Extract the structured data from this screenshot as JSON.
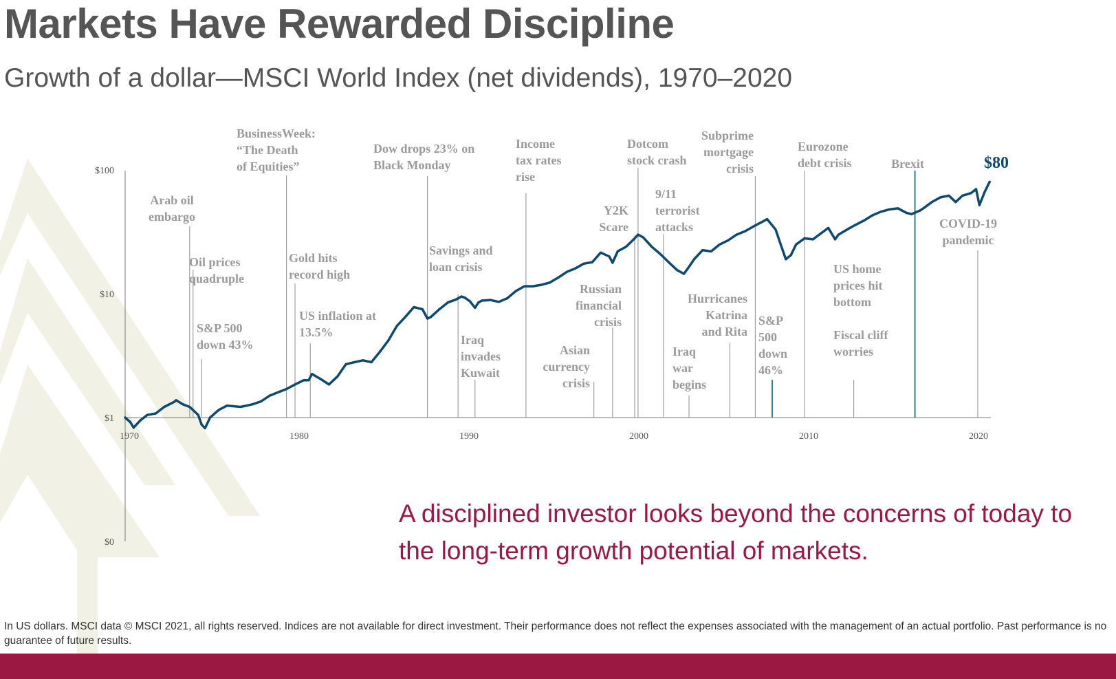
{
  "title": "Markets Have Rewarded Discipline",
  "subtitle": "Growth of a dollar—MSCI World Index (net dividends), 1970–2020",
  "tagline": "A disciplined investor looks beyond the concerns of today to the long-term growth potential of markets.",
  "footnote": "In US dollars. MSCI data © MSCI 2021, all rights reserved. Indices are not available for direct investment. Their performance does not reflect the expenses associated with the management of an actual portfolio. Past performance is no guarantee of future results.",
  "colors": {
    "line": "#0d4a6e",
    "accent": "#9b1842",
    "event_text": "#9a9a9a",
    "highlight_line": "#2a8293",
    "watermark": "#f2f1e6"
  },
  "chart_data": {
    "type": "line",
    "scale": "log",
    "y_ticks": [
      {
        "value": 100,
        "label": "$100"
      },
      {
        "value": 10,
        "label": "$10"
      },
      {
        "value": 1,
        "label": "$1"
      },
      {
        "value": 0,
        "label": "$0"
      }
    ],
    "x_ticks": [
      {
        "value": 1970,
        "label": "1970"
      },
      {
        "value": 1980,
        "label": "1980"
      },
      {
        "value": 1990,
        "label": "1990"
      },
      {
        "value": 2000,
        "label": "2000"
      },
      {
        "value": 2010,
        "label": "2010"
      },
      {
        "value": 2020,
        "label": "2020"
      }
    ],
    "end_value_label": "$80",
    "series": [
      {
        "x": [
          1970.0,
          1970.3,
          1970.5,
          1970.9,
          1971.3,
          1971.8,
          1972.3,
          1972.9,
          1973.0,
          1973.4,
          1973.8,
          1974.3,
          1974.5,
          1974.7,
          1975.0,
          1975.5,
          1976.0,
          1976.8,
          1977.5,
          1978.0,
          1978.5,
          1979.0,
          1979.5,
          1980.0,
          1980.5,
          1980.8,
          1981.0,
          1981.5,
          1982.0,
          1982.5,
          1983.0,
          1983.5,
          1984.0,
          1984.5,
          1985.0,
          1985.5,
          1986.0,
          1986.5,
          1987.0,
          1987.5,
          1987.8,
          1988.0,
          1988.5,
          1989.0,
          1989.5,
          1989.8,
          1990.0,
          1990.3,
          1990.6,
          1990.8,
          1991.0,
          1991.5,
          1992.0,
          1992.5,
          1993.0,
          1993.5,
          1994.0,
          1994.5,
          1995.0,
          1995.5,
          1996.0,
          1996.5,
          1997.0,
          1997.5,
          1998.0,
          1998.5,
          1998.7,
          1999.0,
          1999.5,
          2000.0,
          2000.2,
          2000.5,
          2001.0,
          2001.5,
          2002.0,
          2002.5,
          2002.9,
          2003.2,
          2003.5,
          2004.0,
          2004.5,
          2005.0,
          2005.5,
          2006.0,
          2006.5,
          2007.0,
          2007.5,
          2007.8,
          2008.3,
          2008.6,
          2008.9,
          2009.2,
          2009.5,
          2010.0,
          2010.5,
          2011.0,
          2011.4,
          2011.8,
          2012.0,
          2012.5,
          2013.0,
          2013.5,
          2014.0,
          2014.5,
          2015.0,
          2015.5,
          2016.0,
          2016.3,
          2016.8,
          2017.0,
          2017.5,
          2018.0,
          2018.5,
          2018.9,
          2019.3,
          2019.8,
          2020.1,
          2020.3,
          2020.6,
          2020.9
        ],
        "values": [
          1.0,
          0.92,
          0.83,
          0.95,
          1.05,
          1.08,
          1.22,
          1.34,
          1.38,
          1.28,
          1.22,
          1.05,
          0.88,
          0.82,
          1.0,
          1.15,
          1.25,
          1.22,
          1.28,
          1.35,
          1.5,
          1.6,
          1.7,
          1.85,
          2.0,
          2.0,
          2.25,
          2.05,
          1.85,
          2.15,
          2.7,
          2.8,
          2.9,
          2.8,
          3.4,
          4.2,
          5.5,
          6.5,
          7.8,
          7.5,
          6.3,
          6.5,
          7.5,
          8.5,
          9.0,
          9.5,
          9.3,
          8.7,
          7.7,
          8.5,
          8.8,
          8.9,
          8.6,
          9.2,
          10.5,
          11.5,
          11.5,
          11.8,
          12.3,
          13.5,
          15.0,
          16.0,
          17.5,
          18.0,
          21.5,
          20.0,
          17.8,
          22.0,
          24.0,
          28.0,
          30.0,
          28.5,
          24.0,
          21.0,
          18.0,
          15.5,
          14.5,
          16.5,
          19.0,
          22.5,
          22.0,
          25.0,
          27.0,
          30.0,
          32.0,
          35.0,
          38.0,
          40.0,
          33.0,
          25.0,
          19.0,
          20.5,
          25.0,
          28.0,
          27.5,
          31.0,
          34.0,
          27.5,
          30.0,
          33.0,
          36.0,
          39.0,
          43.0,
          46.0,
          48.0,
          49.0,
          45.0,
          44.0,
          47.0,
          49.0,
          55.0,
          60.0,
          62.0,
          55.0,
          62.0,
          65.0,
          70.0,
          52.0,
          66.0,
          80.0
        ]
      }
    ],
    "annotations": [
      {
        "year": 1973.8,
        "lines": [
          "Arab oil",
          "embargo"
        ]
      },
      {
        "year": 1974.0,
        "lines": [
          "Oil prices",
          "quadruple"
        ]
      },
      {
        "year": 1974.5,
        "lines": [
          "S&P 500",
          "down 43%"
        ]
      },
      {
        "year": 1979.5,
        "lines": [
          "BusinessWeek:",
          "“The Death",
          "of Equities”"
        ]
      },
      {
        "year": 1980.0,
        "lines": [
          "Gold hits",
          "record high"
        ]
      },
      {
        "year": 1980.9,
        "lines": [
          "US inflation at",
          "13.5%"
        ]
      },
      {
        "year": 1987.8,
        "lines": [
          "Dow drops 23% on",
          "Black Monday"
        ]
      },
      {
        "year": 1989.6,
        "lines": [
          "Savings and",
          "loan crisis"
        ]
      },
      {
        "year": 1990.6,
        "lines": [
          "Iraq",
          "invades",
          "Kuwait"
        ]
      },
      {
        "year": 1993.6,
        "lines": [
          "Income",
          "tax rates",
          "rise"
        ]
      },
      {
        "year": 1997.6,
        "lines": [
          "Asian",
          "currency",
          "crisis"
        ]
      },
      {
        "year": 1998.7,
        "lines": [
          "Russian",
          "financial",
          "crisis"
        ]
      },
      {
        "year": 2000.0,
        "lines": [
          "Y2K",
          "Scare"
        ]
      },
      {
        "year": 2000.2,
        "lines": [
          "Dotcom",
          "stock crash"
        ]
      },
      {
        "year": 2001.7,
        "lines": [
          "9/11",
          "terrorist",
          "attacks"
        ]
      },
      {
        "year": 2003.2,
        "lines": [
          "Iraq",
          "war",
          "begins"
        ]
      },
      {
        "year": 2005.6,
        "lines": [
          "Hurricanes",
          "Katrina",
          "and Rita"
        ]
      },
      {
        "year": 2007.1,
        "lines": [
          "Subprime",
          "mortgage",
          "crisis"
        ]
      },
      {
        "year": 2008.1,
        "lines": [
          "S&P",
          "500",
          "down",
          "46%"
        ]
      },
      {
        "year": 2010.0,
        "lines": [
          "Eurozone",
          "debt crisis"
        ]
      },
      {
        "year": 2012.9,
        "lines": [
          "US home",
          "prices hit",
          "bottom"
        ]
      },
      {
        "year": 2012.9,
        "lines": [
          "Fiscal cliff",
          "worries"
        ]
      },
      {
        "year": 2016.5,
        "lines": [
          "Brexit"
        ]
      },
      {
        "year": 2020.2,
        "lines": [
          "COVID-19",
          "pandemic"
        ]
      }
    ]
  }
}
